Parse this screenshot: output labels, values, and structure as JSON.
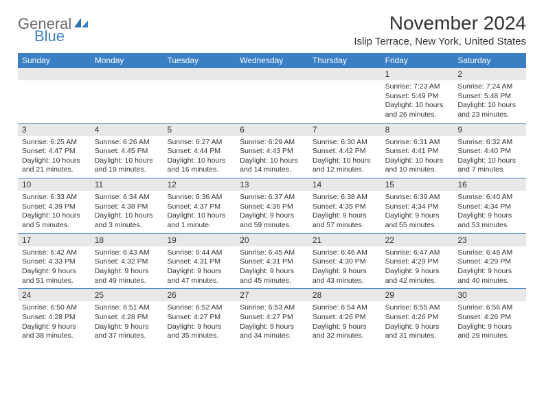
{
  "logo": {
    "text_general": "General",
    "text_blue": "Blue",
    "general_color": "#6b6b6b",
    "blue_color": "#3a7fc4"
  },
  "title": "November 2024",
  "location": "Islip Terrace, New York, United States",
  "colors": {
    "header_bg": "#3a7fc4",
    "daynum_bg": "#e8e8e8",
    "row_border": "#3a7fc4",
    "text": "#333333"
  },
  "weekdays": [
    "Sunday",
    "Monday",
    "Tuesday",
    "Wednesday",
    "Thursday",
    "Friday",
    "Saturday"
  ],
  "weeks": [
    [
      null,
      null,
      null,
      null,
      null,
      {
        "n": "1",
        "sunrise": "Sunrise: 7:23 AM",
        "sunset": "Sunset: 5:49 PM",
        "day1": "Daylight: 10 hours",
        "day2": "and 26 minutes."
      },
      {
        "n": "2",
        "sunrise": "Sunrise: 7:24 AM",
        "sunset": "Sunset: 5:48 PM",
        "day1": "Daylight: 10 hours",
        "day2": "and 23 minutes."
      }
    ],
    [
      {
        "n": "3",
        "sunrise": "Sunrise: 6:25 AM",
        "sunset": "Sunset: 4:47 PM",
        "day1": "Daylight: 10 hours",
        "day2": "and 21 minutes."
      },
      {
        "n": "4",
        "sunrise": "Sunrise: 6:26 AM",
        "sunset": "Sunset: 4:45 PM",
        "day1": "Daylight: 10 hours",
        "day2": "and 19 minutes."
      },
      {
        "n": "5",
        "sunrise": "Sunrise: 6:27 AM",
        "sunset": "Sunset: 4:44 PM",
        "day1": "Daylight: 10 hours",
        "day2": "and 16 minutes."
      },
      {
        "n": "6",
        "sunrise": "Sunrise: 6:29 AM",
        "sunset": "Sunset: 4:43 PM",
        "day1": "Daylight: 10 hours",
        "day2": "and 14 minutes."
      },
      {
        "n": "7",
        "sunrise": "Sunrise: 6:30 AM",
        "sunset": "Sunset: 4:42 PM",
        "day1": "Daylight: 10 hours",
        "day2": "and 12 minutes."
      },
      {
        "n": "8",
        "sunrise": "Sunrise: 6:31 AM",
        "sunset": "Sunset: 4:41 PM",
        "day1": "Daylight: 10 hours",
        "day2": "and 10 minutes."
      },
      {
        "n": "9",
        "sunrise": "Sunrise: 6:32 AM",
        "sunset": "Sunset: 4:40 PM",
        "day1": "Daylight: 10 hours",
        "day2": "and 7 minutes."
      }
    ],
    [
      {
        "n": "10",
        "sunrise": "Sunrise: 6:33 AM",
        "sunset": "Sunset: 4:39 PM",
        "day1": "Daylight: 10 hours",
        "day2": "and 5 minutes."
      },
      {
        "n": "11",
        "sunrise": "Sunrise: 6:34 AM",
        "sunset": "Sunset: 4:38 PM",
        "day1": "Daylight: 10 hours",
        "day2": "and 3 minutes."
      },
      {
        "n": "12",
        "sunrise": "Sunrise: 6:36 AM",
        "sunset": "Sunset: 4:37 PM",
        "day1": "Daylight: 10 hours",
        "day2": "and 1 minute."
      },
      {
        "n": "13",
        "sunrise": "Sunrise: 6:37 AM",
        "sunset": "Sunset: 4:36 PM",
        "day1": "Daylight: 9 hours",
        "day2": "and 59 minutes."
      },
      {
        "n": "14",
        "sunrise": "Sunrise: 6:38 AM",
        "sunset": "Sunset: 4:35 PM",
        "day1": "Daylight: 9 hours",
        "day2": "and 57 minutes."
      },
      {
        "n": "15",
        "sunrise": "Sunrise: 6:39 AM",
        "sunset": "Sunset: 4:34 PM",
        "day1": "Daylight: 9 hours",
        "day2": "and 55 minutes."
      },
      {
        "n": "16",
        "sunrise": "Sunrise: 6:40 AM",
        "sunset": "Sunset: 4:34 PM",
        "day1": "Daylight: 9 hours",
        "day2": "and 53 minutes."
      }
    ],
    [
      {
        "n": "17",
        "sunrise": "Sunrise: 6:42 AM",
        "sunset": "Sunset: 4:33 PM",
        "day1": "Daylight: 9 hours",
        "day2": "and 51 minutes."
      },
      {
        "n": "18",
        "sunrise": "Sunrise: 6:43 AM",
        "sunset": "Sunset: 4:32 PM",
        "day1": "Daylight: 9 hours",
        "day2": "and 49 minutes."
      },
      {
        "n": "19",
        "sunrise": "Sunrise: 6:44 AM",
        "sunset": "Sunset: 4:31 PM",
        "day1": "Daylight: 9 hours",
        "day2": "and 47 minutes."
      },
      {
        "n": "20",
        "sunrise": "Sunrise: 6:45 AM",
        "sunset": "Sunset: 4:31 PM",
        "day1": "Daylight: 9 hours",
        "day2": "and 45 minutes."
      },
      {
        "n": "21",
        "sunrise": "Sunrise: 6:46 AM",
        "sunset": "Sunset: 4:30 PM",
        "day1": "Daylight: 9 hours",
        "day2": "and 43 minutes."
      },
      {
        "n": "22",
        "sunrise": "Sunrise: 6:47 AM",
        "sunset": "Sunset: 4:29 PM",
        "day1": "Daylight: 9 hours",
        "day2": "and 42 minutes."
      },
      {
        "n": "23",
        "sunrise": "Sunrise: 6:48 AM",
        "sunset": "Sunset: 4:29 PM",
        "day1": "Daylight: 9 hours",
        "day2": "and 40 minutes."
      }
    ],
    [
      {
        "n": "24",
        "sunrise": "Sunrise: 6:50 AM",
        "sunset": "Sunset: 4:28 PM",
        "day1": "Daylight: 9 hours",
        "day2": "and 38 minutes."
      },
      {
        "n": "25",
        "sunrise": "Sunrise: 6:51 AM",
        "sunset": "Sunset: 4:28 PM",
        "day1": "Daylight: 9 hours",
        "day2": "and 37 minutes."
      },
      {
        "n": "26",
        "sunrise": "Sunrise: 6:52 AM",
        "sunset": "Sunset: 4:27 PM",
        "day1": "Daylight: 9 hours",
        "day2": "and 35 minutes."
      },
      {
        "n": "27",
        "sunrise": "Sunrise: 6:53 AM",
        "sunset": "Sunset: 4:27 PM",
        "day1": "Daylight: 9 hours",
        "day2": "and 34 minutes."
      },
      {
        "n": "28",
        "sunrise": "Sunrise: 6:54 AM",
        "sunset": "Sunset: 4:26 PM",
        "day1": "Daylight: 9 hours",
        "day2": "and 32 minutes."
      },
      {
        "n": "29",
        "sunrise": "Sunrise: 6:55 AM",
        "sunset": "Sunset: 4:26 PM",
        "day1": "Daylight: 9 hours",
        "day2": "and 31 minutes."
      },
      {
        "n": "30",
        "sunrise": "Sunrise: 6:56 AM",
        "sunset": "Sunset: 4:26 PM",
        "day1": "Daylight: 9 hours",
        "day2": "and 29 minutes."
      }
    ]
  ]
}
